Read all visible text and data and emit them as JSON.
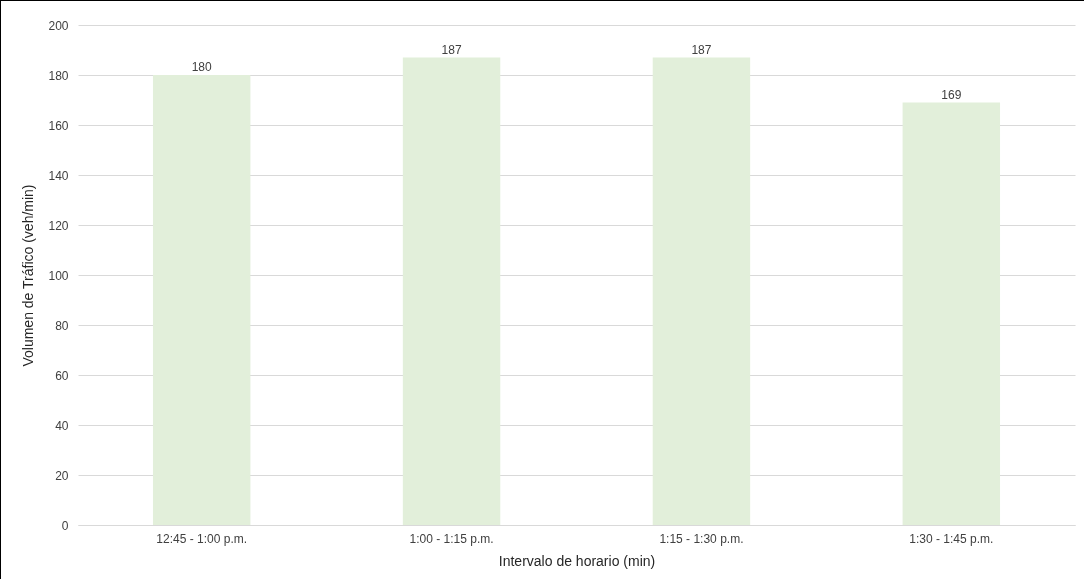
{
  "chart_data": {
    "type": "bar",
    "xlabel": "Intervalo de horario (min)",
    "ylabel": "Volumen de Tráfico (veh/min)",
    "categories": [
      "12:45 - 1:00 p.m.",
      "1:00 - 1:15 p.m.",
      "1:15 - 1:30 p.m.",
      "1:30 - 1:45 p.m."
    ],
    "values": [
      180,
      187,
      187,
      169
    ],
    "color": "#e2efda",
    "ylim": [
      0,
      200
    ],
    "yticks": [
      0,
      20,
      40,
      60,
      80,
      100,
      120,
      140,
      160,
      180,
      200
    ],
    "grid": "y",
    "data_labels": true
  }
}
